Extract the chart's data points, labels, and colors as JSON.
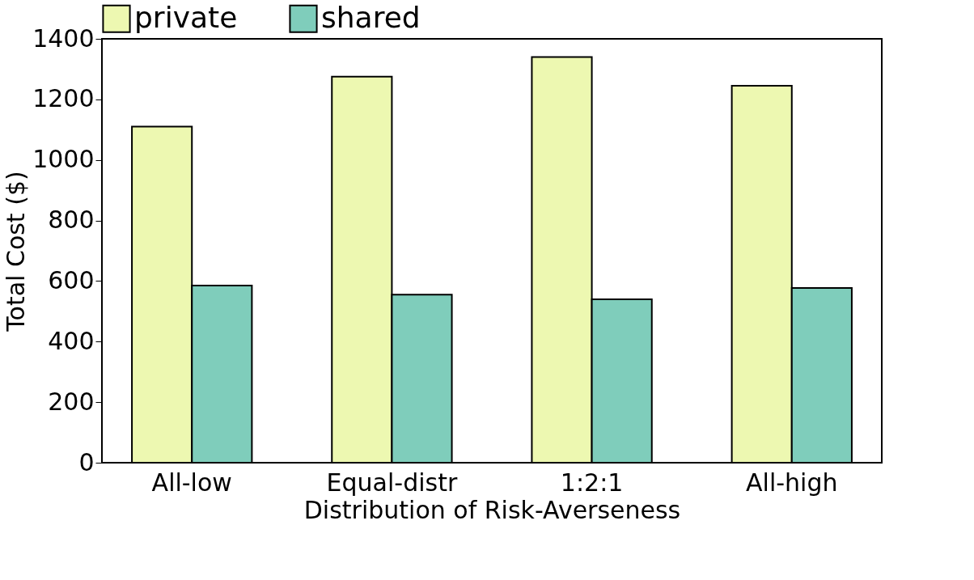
{
  "chart_data": {
    "type": "bar",
    "xlabel": "Distribution of Risk-Averseness",
    "ylabel": "Total Cost ($)",
    "categories": [
      "All-low",
      "Equal-distr",
      "1:2:1",
      "All-high"
    ],
    "series": [
      {
        "name": "private",
        "color": "#edf8b1",
        "values": [
          1110,
          1275,
          1340,
          1245
        ]
      },
      {
        "name": "shared",
        "color": "#7fcdbb",
        "values": [
          585,
          555,
          540,
          577
        ]
      }
    ],
    "ylim": [
      0,
      1400
    ],
    "yticks": [
      0,
      200,
      400,
      600,
      800,
      1000,
      1200,
      1400
    ],
    "grid": false,
    "legend": "top"
  }
}
